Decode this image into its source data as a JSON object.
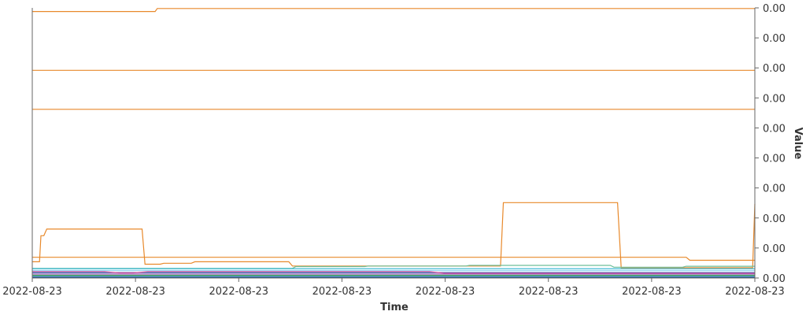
{
  "chart_data": {
    "type": "line",
    "xlabel": "Time",
    "ylabel": "Value",
    "x_ticks": [
      "2022-08-23",
      "2022-08-23",
      "2022-08-23",
      "2022-08-23",
      "2022-08-23",
      "2022-08-23",
      "2022-08-23",
      "2022-08-23"
    ],
    "y_ticks": [
      "0.00",
      "0.00",
      "0.00",
      "0.00",
      "0.00",
      "0.00",
      "0.00",
      "0.00",
      "0.00",
      "0.00"
    ],
    "xlim": [
      0,
      100
    ],
    "ylim": [
      0,
      90
    ],
    "grid": false,
    "series": [
      {
        "color": "#e8892b",
        "x": [
          0,
          17,
          17.3,
          100
        ],
        "y": [
          88.8,
          88.8,
          89.8,
          89.8
        ]
      },
      {
        "color": "#e8892b",
        "x": [
          0,
          100
        ],
        "y": [
          69.2,
          69.2
        ]
      },
      {
        "color": "#e8892b",
        "x": [
          0,
          100
        ],
        "y": [
          56.2,
          56.2
        ]
      },
      {
        "color": "#e8892b",
        "x": [
          0,
          1,
          1.2,
          1.6,
          2,
          15.2,
          15.6,
          17.7,
          18.2,
          22,
          22.5,
          35.5,
          36,
          64.8,
          65.2,
          81,
          81.5,
          99.7,
          100
        ],
        "y": [
          5.4,
          5.4,
          14.1,
          14.1,
          16.3,
          16.3,
          4.6,
          4.6,
          4.9,
          4.9,
          5.4,
          5.4,
          4.0,
          4.0,
          25.1,
          25.1,
          3.4,
          3.4,
          24.7
        ]
      },
      {
        "color": "#e8892b",
        "x": [
          0,
          90.5,
          91,
          100
        ],
        "y": [
          6.9,
          6.9,
          5.9,
          5.9
        ]
      },
      {
        "color": "#6cbf9a",
        "x": [
          0,
          36,
          36.5,
          46,
          46.5,
          60,
          60.5,
          80,
          80.5,
          90,
          90.5,
          100
        ],
        "y": [
          3.2,
          3.2,
          3.8,
          3.8,
          4.0,
          4.0,
          4.2,
          4.2,
          3.6,
          3.6,
          3.9,
          3.9
        ]
      },
      {
        "color": "#2db3d0",
        "x": [
          0,
          100
        ],
        "y": [
          3.1,
          3.1
        ]
      },
      {
        "color": "#8fd3ef",
        "x": [
          0,
          100
        ],
        "y": [
          2.5,
          2.5
        ]
      },
      {
        "color": "#1f6fb4",
        "x": [
          0,
          100
        ],
        "y": [
          1.8,
          1.8
        ]
      },
      {
        "color": "#d64a9a",
        "x": [
          0,
          10,
          12,
          14,
          16,
          55,
          57,
          100
        ],
        "y": [
          2.1,
          2.1,
          1.7,
          1.7,
          2.1,
          2.1,
          1.6,
          1.6
        ]
      },
      {
        "color": "#9b59b6",
        "x": [
          0,
          100
        ],
        "y": [
          1.3,
          1.3
        ]
      },
      {
        "color": "#3a9e4f",
        "x": [
          0,
          100
        ],
        "y": [
          0.9,
          0.9
        ]
      },
      {
        "color": "#2a7ab9",
        "x": [
          0,
          100
        ],
        "y": [
          0.5,
          0.5
        ]
      },
      {
        "color": "#1b4f8a",
        "x": [
          0,
          100
        ],
        "y": [
          0.15,
          0.15
        ]
      }
    ]
  }
}
